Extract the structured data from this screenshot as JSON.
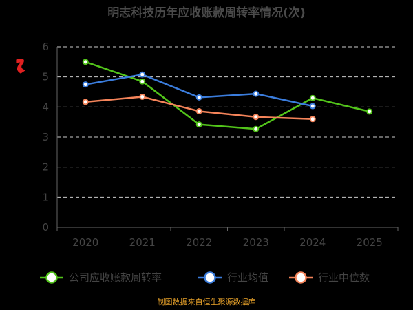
{
  "chart_data": {
    "type": "line",
    "title": "明志科技历年应收账款周转率情况(次)",
    "categories": [
      "2020",
      "2021",
      "2022",
      "2023",
      "2024",
      "2025"
    ],
    "y_ticks": [
      "0",
      "1",
      "2",
      "3",
      "4",
      "5",
      "6"
    ],
    "ylim": [
      0,
      6
    ],
    "grid": true,
    "legend_position": "bottom",
    "series": [
      {
        "name": "公司应收账款周转率",
        "color": "#52c41a",
        "values": [
          5.5,
          4.85,
          3.42,
          3.27,
          4.3,
          3.85
        ]
      },
      {
        "name": "行业均值",
        "color": "#3b7ddd",
        "values": [
          4.75,
          5.08,
          4.32,
          4.44,
          4.03,
          null
        ]
      },
      {
        "name": "行业中位数",
        "color": "#f5845a",
        "values": [
          4.17,
          4.34,
          3.86,
          3.67,
          3.6,
          null
        ]
      }
    ],
    "source": "制图数据来自恒生聚源数据库"
  },
  "logo_color": "#e02020"
}
